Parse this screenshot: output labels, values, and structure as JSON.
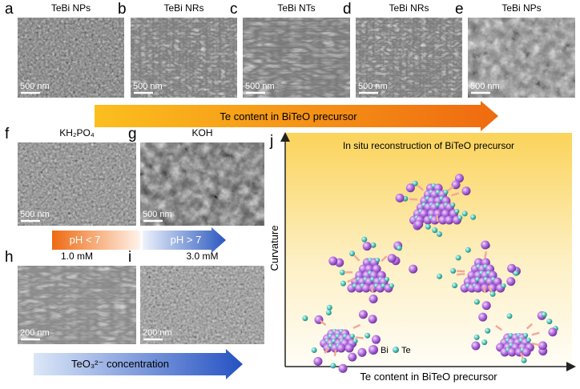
{
  "row1": [
    {
      "letter": "a",
      "title": "TeBi NPs",
      "scale": "500 nm"
    },
    {
      "letter": "b",
      "title": "TeBi NRs",
      "scale": "500 nm"
    },
    {
      "letter": "c",
      "title": "TeBi NTs",
      "scale": "500 nm"
    },
    {
      "letter": "d",
      "title": "TeBi NRs",
      "scale": "500 nm"
    },
    {
      "letter": "e",
      "title": "TeBi NPs",
      "scale": "500 nm"
    }
  ],
  "row1_arrow": "Te content in BiTeO precursor",
  "row2": [
    {
      "letter": "f",
      "title": "KH₂PO₄",
      "scale": "500 nm"
    },
    {
      "letter": "g",
      "title": "KOH",
      "scale": "500 nm"
    }
  ],
  "ph_arrow": [
    "pH < 7",
    "pH > 7"
  ],
  "row3": [
    {
      "letter": "h",
      "title": "1.0 mM",
      "scale": "200 nm"
    },
    {
      "letter": "i",
      "title": "3.0 mM",
      "scale": "200 nm"
    }
  ],
  "conc_arrow": "TeO₃²⁻ concentration",
  "panel_j": {
    "letter": "j",
    "title": "In situ reconstruction of BiTeO precursor",
    "y_label": "Curvature",
    "x_label": "Te content in BiTeO precursor",
    "legend": [
      "Bi",
      "Te"
    ]
  }
}
